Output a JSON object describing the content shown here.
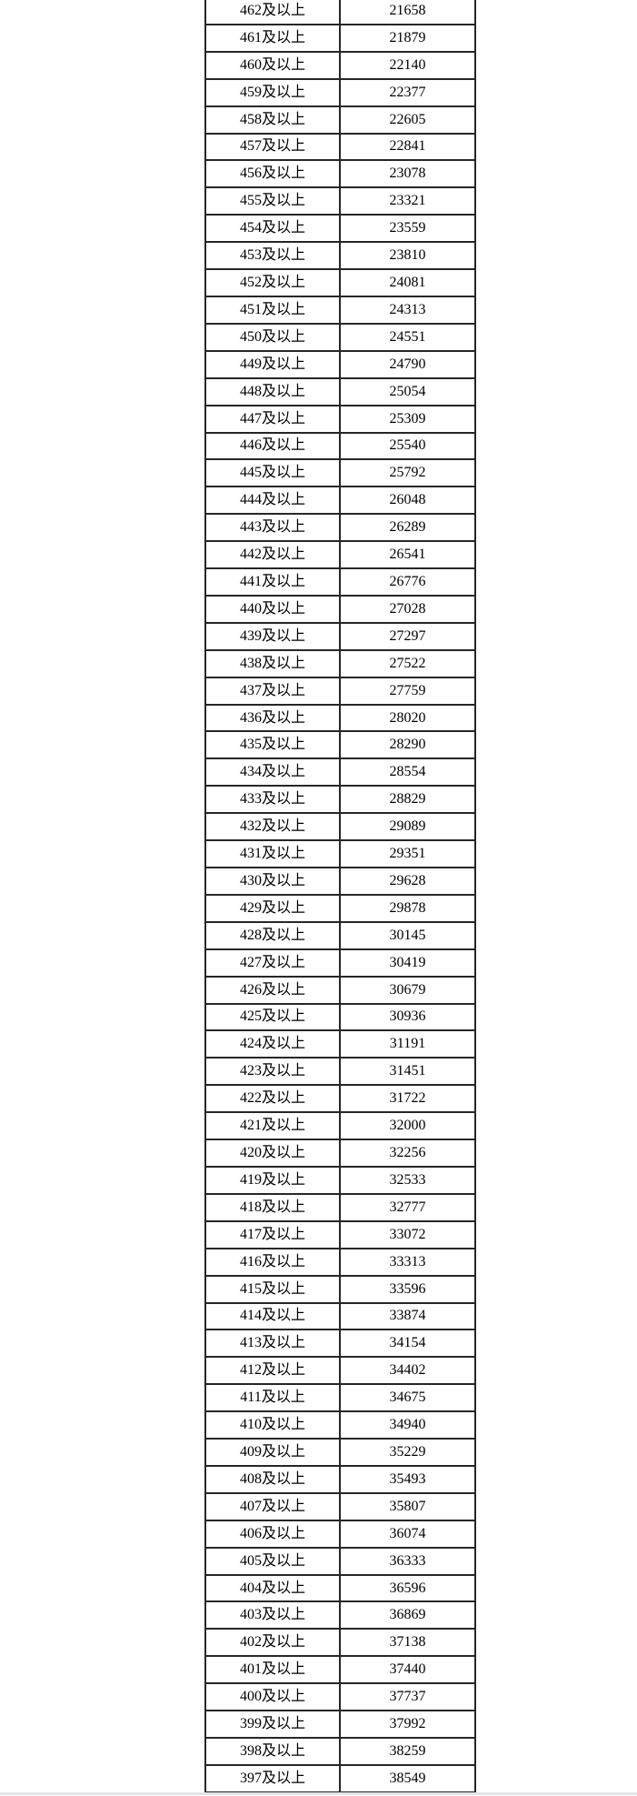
{
  "page": {
    "background": "#ffffff",
    "bottom_strip_color": "#e2e6ea"
  },
  "table": {
    "border_color": "#262626",
    "text_color": "#000000",
    "columns": [
      "score_range",
      "cumulative_count"
    ],
    "rows": [
      {
        "range": "462及以上",
        "count": "21658"
      },
      {
        "range": "461及以上",
        "count": "21879"
      },
      {
        "range": "460及以上",
        "count": "22140"
      },
      {
        "range": "459及以上",
        "count": "22377"
      },
      {
        "range": "458及以上",
        "count": "22605"
      },
      {
        "range": "457及以上",
        "count": "22841"
      },
      {
        "range": "456及以上",
        "count": "23078"
      },
      {
        "range": "455及以上",
        "count": "23321"
      },
      {
        "range": "454及以上",
        "count": "23559"
      },
      {
        "range": "453及以上",
        "count": "23810"
      },
      {
        "range": "452及以上",
        "count": "24081"
      },
      {
        "range": "451及以上",
        "count": "24313"
      },
      {
        "range": "450及以上",
        "count": "24551"
      },
      {
        "range": "449及以上",
        "count": "24790"
      },
      {
        "range": "448及以上",
        "count": "25054"
      },
      {
        "range": "447及以上",
        "count": "25309"
      },
      {
        "range": "446及以上",
        "count": "25540"
      },
      {
        "range": "445及以上",
        "count": "25792"
      },
      {
        "range": "444及以上",
        "count": "26048"
      },
      {
        "range": "443及以上",
        "count": "26289"
      },
      {
        "range": "442及以上",
        "count": "26541"
      },
      {
        "range": "441及以上",
        "count": "26776"
      },
      {
        "range": "440及以上",
        "count": "27028"
      },
      {
        "range": "439及以上",
        "count": "27297"
      },
      {
        "range": "438及以上",
        "count": "27522"
      },
      {
        "range": "437及以上",
        "count": "27759"
      },
      {
        "range": "436及以上",
        "count": "28020"
      },
      {
        "range": "435及以上",
        "count": "28290"
      },
      {
        "range": "434及以上",
        "count": "28554"
      },
      {
        "range": "433及以上",
        "count": "28829"
      },
      {
        "range": "432及以上",
        "count": "29089"
      },
      {
        "range": "431及以上",
        "count": "29351"
      },
      {
        "range": "430及以上",
        "count": "29628"
      },
      {
        "range": "429及以上",
        "count": "29878"
      },
      {
        "range": "428及以上",
        "count": "30145"
      },
      {
        "range": "427及以上",
        "count": "30419"
      },
      {
        "range": "426及以上",
        "count": "30679"
      },
      {
        "range": "425及以上",
        "count": "30936"
      },
      {
        "range": "424及以上",
        "count": "31191"
      },
      {
        "range": "423及以上",
        "count": "31451"
      },
      {
        "range": "422及以上",
        "count": "31722"
      },
      {
        "range": "421及以上",
        "count": "32000"
      },
      {
        "range": "420及以上",
        "count": "32256"
      },
      {
        "range": "419及以上",
        "count": "32533"
      },
      {
        "range": "418及以上",
        "count": "32777"
      },
      {
        "range": "417及以上",
        "count": "33072"
      },
      {
        "range": "416及以上",
        "count": "33313"
      },
      {
        "range": "415及以上",
        "count": "33596"
      },
      {
        "range": "414及以上",
        "count": "33874"
      },
      {
        "range": "413及以上",
        "count": "34154"
      },
      {
        "range": "412及以上",
        "count": "34402"
      },
      {
        "range": "411及以上",
        "count": "34675"
      },
      {
        "range": "410及以上",
        "count": "34940"
      },
      {
        "range": "409及以上",
        "count": "35229"
      },
      {
        "range": "408及以上",
        "count": "35493"
      },
      {
        "range": "407及以上",
        "count": "35807"
      },
      {
        "range": "406及以上",
        "count": "36074"
      },
      {
        "range": "405及以上",
        "count": "36333"
      },
      {
        "range": "404及以上",
        "count": "36596"
      },
      {
        "range": "403及以上",
        "count": "36869"
      },
      {
        "range": "402及以上",
        "count": "37138"
      },
      {
        "range": "401及以上",
        "count": "37440"
      },
      {
        "range": "400及以上",
        "count": "37737"
      },
      {
        "range": "399及以上",
        "count": "37992"
      },
      {
        "range": "398及以上",
        "count": "38259"
      },
      {
        "range": "397及以上",
        "count": "38549"
      }
    ]
  }
}
